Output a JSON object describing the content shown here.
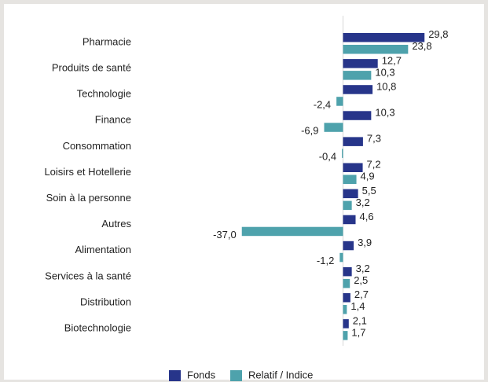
{
  "chart_data": {
    "type": "hbar",
    "categories": [
      "Pharmacie",
      "Produits de santé",
      "Technologie",
      "Finance",
      "Consommation",
      "Loisirs et Hotellerie",
      "Soin à la personne",
      "Autres",
      "Alimentation",
      "Services à la santé",
      "Distribution",
      "Biotechnologie"
    ],
    "series": [
      {
        "name": "Fonds",
        "color": "#27358a",
        "values": [
          29.8,
          12.7,
          10.8,
          10.3,
          7.3,
          7.2,
          5.5,
          4.6,
          3.9,
          3.2,
          2.7,
          2.1
        ],
        "value_labels": [
          "29,8",
          "12,7",
          "10,8",
          "10,3",
          "7,3",
          "7,2",
          "5,5",
          "4,6",
          "3,9",
          "3,2",
          "2,7",
          "2,1"
        ]
      },
      {
        "name": "Relatif / Indice",
        "color": "#4ea2ac",
        "values": [
          23.8,
          10.3,
          -2.4,
          -6.9,
          -0.4,
          4.9,
          3.2,
          -37.0,
          -1.2,
          2.5,
          1.4,
          1.7
        ],
        "value_labels": [
          "23,8",
          "10,3",
          "-2,4",
          "-6,9",
          "-0,4",
          "4,9",
          "3,2",
          "-37,0",
          "-1,2",
          "2,5",
          "1,4",
          "1,7"
        ]
      }
    ],
    "legend": "bottom"
  }
}
